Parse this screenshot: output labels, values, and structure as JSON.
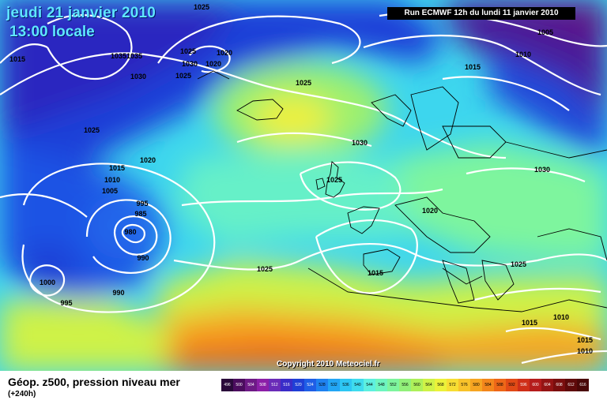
{
  "header": {
    "date": "jeudi 21 janvier 2010",
    "time": "13:00 locale",
    "run": "Run ECMWF 12h du lundi 11 janvier 2010"
  },
  "copyright": "Copyright 2010 Meteociel.fr",
  "footer": {
    "title": "Géop. z500, pression niveau mer",
    "subtitle": "(+240h)"
  },
  "isobar_labels": [
    "1025",
    "1015",
    "10351035",
    "1030",
    "1025",
    "1030",
    "1020",
    "1020",
    "1025",
    "1025",
    "1005",
    "1010",
    "1015",
    "1025",
    "1030",
    "1015",
    "1020",
    "1010",
    "1005",
    "995",
    "985",
    "980",
    "990",
    "1000",
    "990",
    "995",
    "1025",
    "1025",
    "1030",
    "1020",
    "1025",
    "1015",
    "1015",
    "1010",
    "1015",
    "1010"
  ],
  "color_scale": {
    "values": [
      "496",
      "500",
      "504",
      "508",
      "512",
      "516",
      "520",
      "524",
      "528",
      "532",
      "536",
      "540",
      "544",
      "548",
      "552",
      "556",
      "560",
      "564",
      "568",
      "572",
      "576",
      "580",
      "584",
      "588",
      "592",
      "596",
      "600",
      "604",
      "608",
      "612",
      "616"
    ],
    "colors": [
      "#2a0a3a",
      "#4b0c5e",
      "#6e1a86",
      "#8c1fa8",
      "#6a2cb8",
      "#3a2cc8",
      "#1f3fd6",
      "#1f5ee6",
      "#1f82f0",
      "#23a6f5",
      "#2ec7f3",
      "#3fdcee",
      "#5ef0e0",
      "#6ef5c0",
      "#7ef59e",
      "#92f07a",
      "#aef05a",
      "#cff247",
      "#ecf23a",
      "#f7de33",
      "#f8c22a",
      "#f6a522",
      "#f3861c",
      "#ee6718",
      "#e24a16",
      "#cf2f18",
      "#b51c1c",
      "#951414",
      "#7a0e0e",
      "#5f0a0a",
      "#4a0808"
    ]
  }
}
